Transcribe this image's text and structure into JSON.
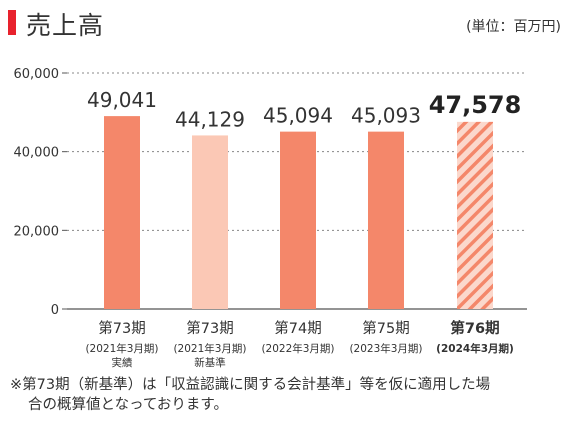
{
  "header": {
    "title": "売上高",
    "unit": "(単位：百万円)"
  },
  "chart_data": {
    "type": "bar",
    "categories": [
      "第73期",
      "第73期",
      "第74期",
      "第75期",
      "第76期"
    ],
    "subtitles": [
      [
        "(2021年3月期)",
        "実績"
      ],
      [
        "(2021年3月期)",
        "新基準"
      ],
      [
        "(2022年3月期)"
      ],
      [
        "(2023年3月期)"
      ],
      [
        "(2024年3月期)"
      ]
    ],
    "values": [
      49041,
      44129,
      45094,
      45093,
      47578
    ],
    "value_labels": [
      "49,041",
      "44,129",
      "45,094",
      "45,093",
      "47,578"
    ],
    "styles": [
      "solid",
      "light",
      "solid",
      "solid",
      "hatched"
    ],
    "highlight_index": 4,
    "ylim": [
      0,
      60000
    ],
    "yticks": [
      0,
      20000,
      40000,
      60000
    ],
    "ytick_labels": [
      "0",
      "20,000",
      "40,000",
      "60,000"
    ],
    "grid": true,
    "colors": {
      "solid": "#f4876a",
      "light": "#fbc8b5",
      "hatch_bg": "#fbd8cc",
      "hatch_line": "#f4876a",
      "axis": "#555555",
      "grid": "#888888"
    }
  },
  "footnote": {
    "line1": "※第73期（新基準）は「収益認識に関する会計基準」等を仮に適用した場",
    "line2": "合の概算値となっております。"
  }
}
